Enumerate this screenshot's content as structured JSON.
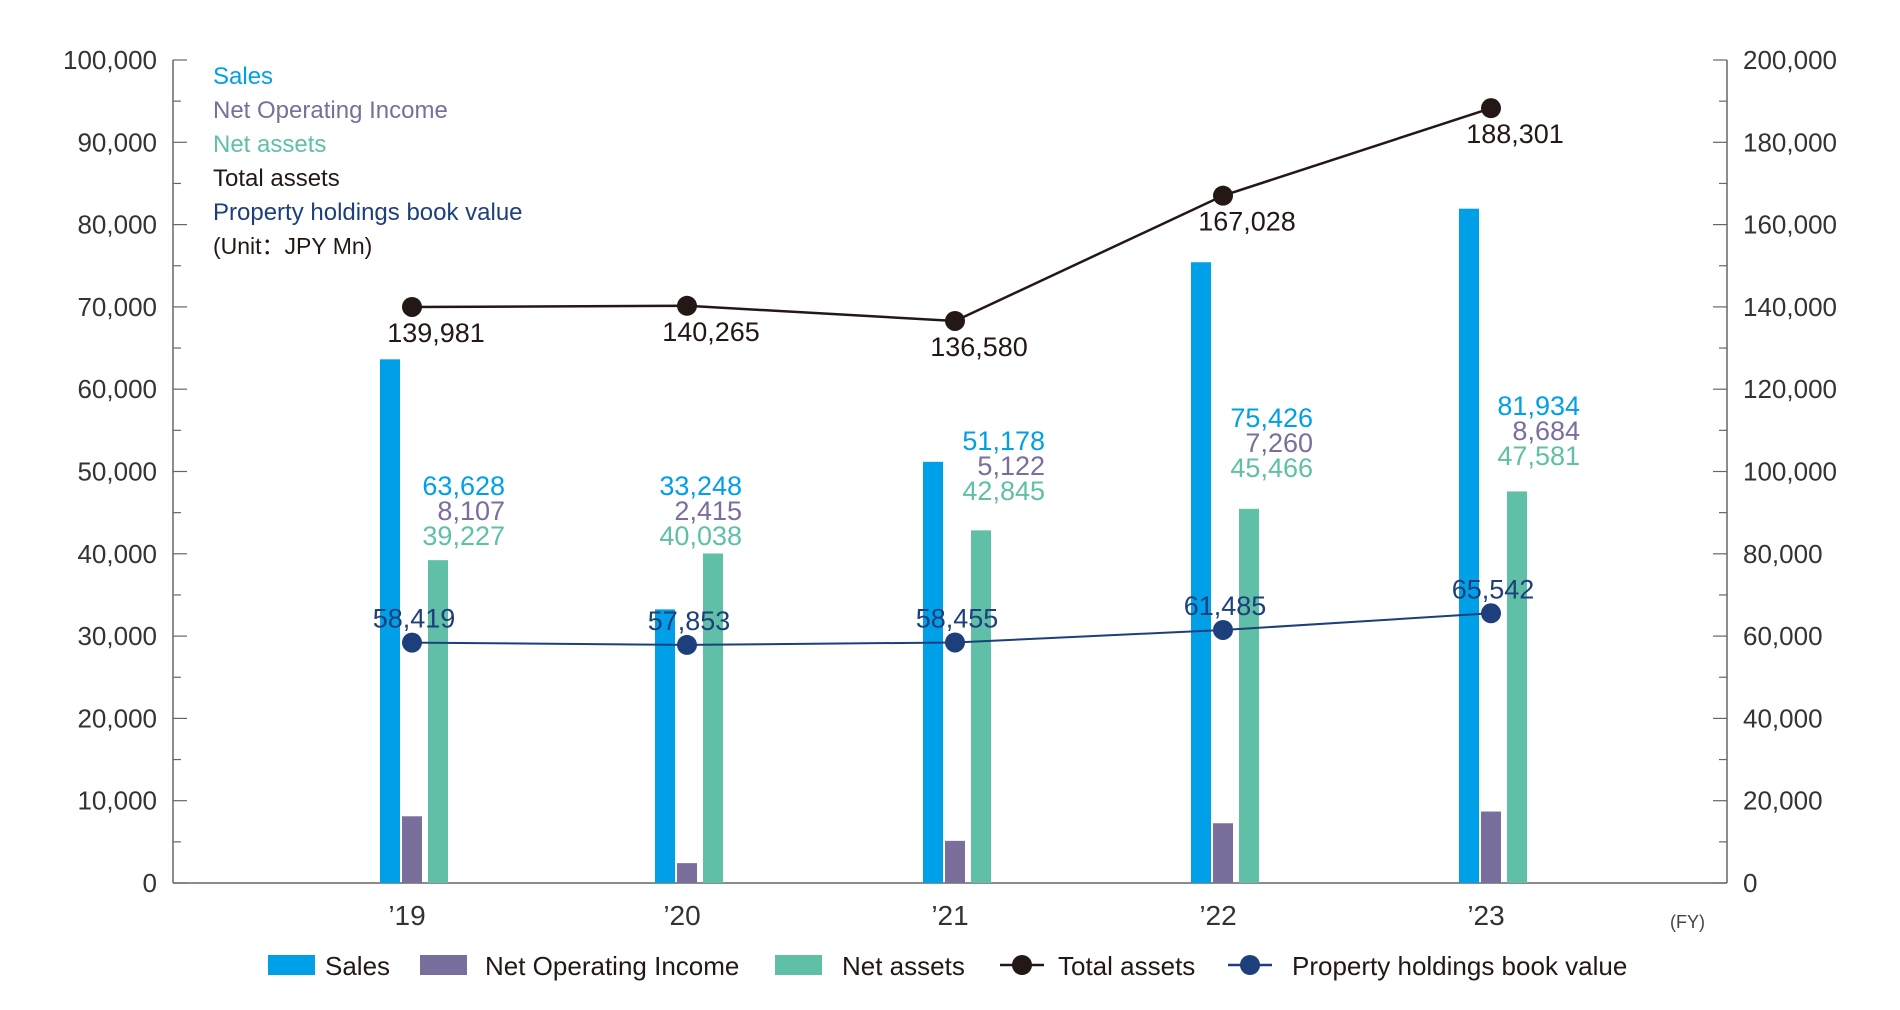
{
  "colors": {
    "sales": "#00a0e9",
    "noi": "#7a6e9c",
    "net_assets": "#5fc0a7",
    "total_assets": "#231815",
    "property": "#1d3f7c",
    "axis": "#666666",
    "label": "#333333"
  },
  "header_legend": {
    "sales": "Sales",
    "noi": "Net Operating Income",
    "net_assets": "Net assets",
    "total_assets": "Total assets",
    "property": "Property holdings book value",
    "unit": "(Unit：JPY Mn)"
  },
  "fy_label": "(FY)",
  "chart_data": {
    "type": "bar",
    "categories": [
      "’19",
      "’20",
      "’21",
      "’22",
      "’23"
    ],
    "series": [
      {
        "name": "Sales",
        "type": "bar",
        "axis": "left",
        "values": [
          63628,
          33248,
          51178,
          75426,
          81934
        ],
        "labels": [
          "63,628",
          "33,248",
          "51,178",
          "75,426",
          "81,934"
        ]
      },
      {
        "name": "Net Operating Income",
        "type": "bar",
        "axis": "left",
        "values": [
          8107,
          2415,
          5122,
          7260,
          8684
        ],
        "labels": [
          "8,107",
          "2,415",
          "5,122",
          "7,260",
          "8,684"
        ]
      },
      {
        "name": "Net assets",
        "type": "bar",
        "axis": "left",
        "values": [
          39227,
          40038,
          42845,
          45466,
          47581
        ],
        "labels": [
          "39,227",
          "40,038",
          "42,845",
          "45,466",
          "47,581"
        ]
      },
      {
        "name": "Total assets",
        "type": "line",
        "axis": "right",
        "values": [
          139981,
          140265,
          136580,
          167028,
          188301
        ],
        "labels": [
          "139,981",
          "140,265",
          "136,580",
          "167,028",
          "188,301"
        ]
      },
      {
        "name": "Property holdings book value",
        "type": "line",
        "axis": "right",
        "values": [
          58419,
          57853,
          58455,
          61485,
          65542
        ],
        "labels": [
          "58,419",
          "57,853",
          "58,455",
          "61,485",
          "65,542"
        ]
      }
    ],
    "y_left": {
      "min": 0,
      "max": 100000,
      "ticks": [
        "0",
        "10,000",
        "20,000",
        "30,000",
        "40,000",
        "50,000",
        "60,000",
        "70,000",
        "80,000",
        "90,000",
        "100,000"
      ]
    },
    "y_right": {
      "min": 0,
      "max": 200000,
      "ticks": [
        "0",
        "20,000",
        "40,000",
        "60,000",
        "80,000",
        "100,000",
        "120,000",
        "140,000",
        "160,000",
        "180,000",
        "200,000"
      ]
    },
    "grid": false,
    "legend": [
      "Sales",
      "Net Operating Income",
      "Net assets",
      "Total assets",
      "Property holdings book value"
    ]
  }
}
